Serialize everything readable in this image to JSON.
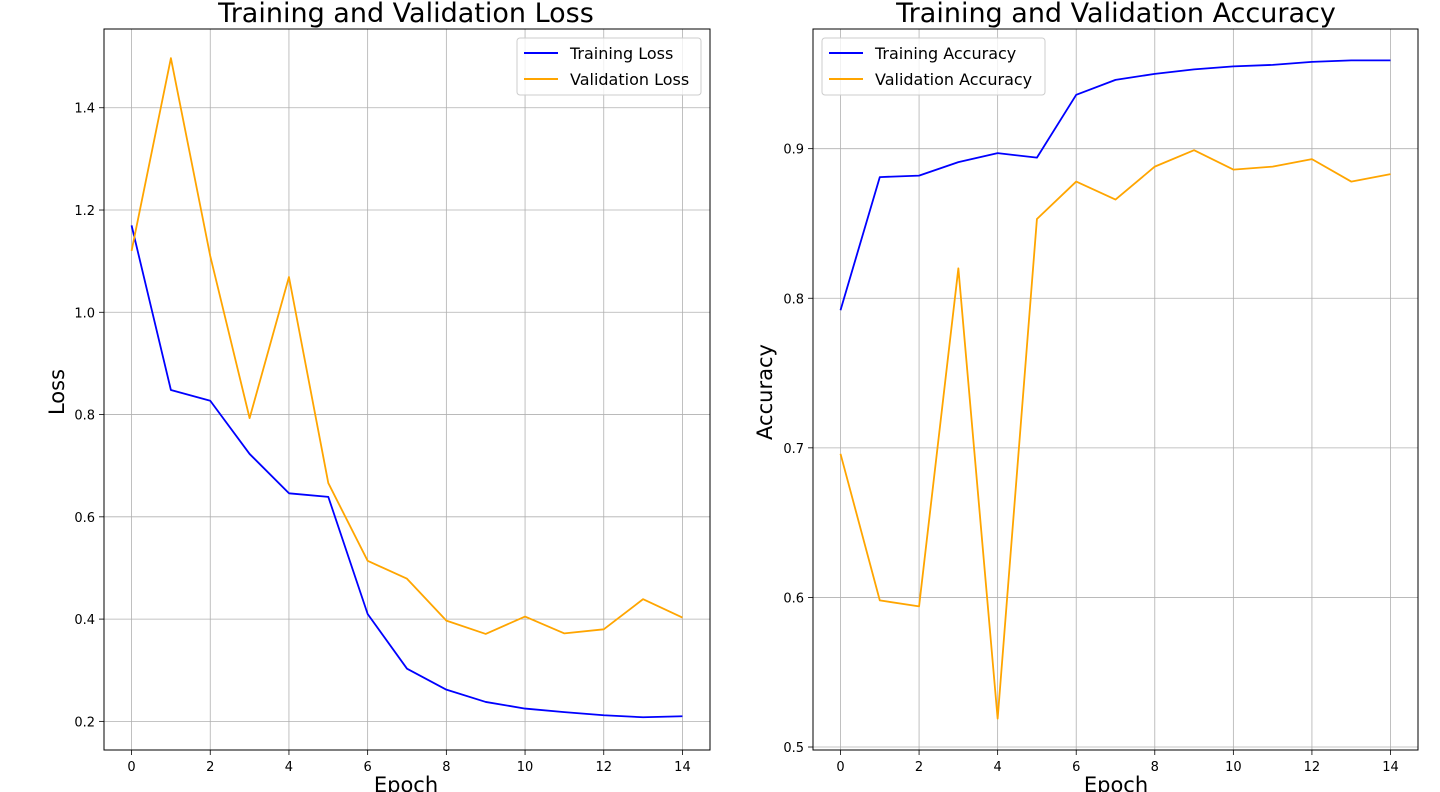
{
  "chart_data": [
    {
      "type": "line",
      "title": "Training and Validation Loss",
      "xlabel": "Epoch",
      "ylabel": "Loss",
      "x": [
        0,
        1,
        2,
        3,
        4,
        5,
        6,
        7,
        8,
        9,
        10,
        11,
        12,
        13,
        14
      ],
      "xlim": [
        -0.7,
        14.7
      ],
      "ylim": [
        0.144,
        1.554
      ],
      "xticks": [
        0,
        2,
        4,
        6,
        8,
        10,
        12,
        14
      ],
      "xtick_labels": [
        "0",
        "2",
        "4",
        "6",
        "8",
        "10",
        "12",
        "14"
      ],
      "yticks": [
        0.2,
        0.4,
        0.6,
        0.8,
        1.0,
        1.2,
        1.4
      ],
      "ytick_labels": [
        "0.2",
        "0.4",
        "0.6",
        "0.8",
        "1.0",
        "1.2",
        "1.4"
      ],
      "grid": true,
      "legend_position": "top-right",
      "series": [
        {
          "name": "Training Loss",
          "color": "#0000ff",
          "values": [
            1.17,
            0.848,
            0.827,
            0.723,
            0.646,
            0.639,
            0.41,
            0.303,
            0.262,
            0.238,
            0.225,
            0.218,
            0.212,
            0.208,
            0.21
          ]
        },
        {
          "name": "Validation Loss",
          "color": "#ffa500",
          "values": [
            1.12,
            1.497,
            1.11,
            0.793,
            1.069,
            0.666,
            0.514,
            0.479,
            0.397,
            0.371,
            0.405,
            0.372,
            0.38,
            0.439,
            0.403
          ]
        }
      ]
    },
    {
      "type": "line",
      "title": "Training and Validation Accuracy",
      "xlabel": "Epoch",
      "ylabel": "Accuracy",
      "x": [
        0,
        1,
        2,
        3,
        4,
        5,
        6,
        7,
        8,
        9,
        10,
        11,
        12,
        13,
        14
      ],
      "xlim": [
        -0.7,
        14.7
      ],
      "ylim": [
        0.498,
        0.98
      ],
      "xticks": [
        0,
        2,
        4,
        6,
        8,
        10,
        12,
        14
      ],
      "xtick_labels": [
        "0",
        "2",
        "4",
        "6",
        "8",
        "10",
        "12",
        "14"
      ],
      "yticks": [
        0.5,
        0.6,
        0.7,
        0.8,
        0.9
      ],
      "ytick_labels": [
        "0.5",
        "0.6",
        "0.7",
        "0.8",
        "0.9"
      ],
      "grid": true,
      "legend_position": "top-left",
      "series": [
        {
          "name": "Training Accuracy",
          "color": "#0000ff",
          "values": [
            0.792,
            0.881,
            0.882,
            0.891,
            0.897,
            0.894,
            0.936,
            0.946,
            0.95,
            0.953,
            0.955,
            0.956,
            0.958,
            0.959,
            0.959
          ]
        },
        {
          "name": "Validation Accuracy",
          "color": "#ffa500",
          "values": [
            0.696,
            0.598,
            0.594,
            0.82,
            0.519,
            0.853,
            0.878,
            0.866,
            0.888,
            0.899,
            0.886,
            0.888,
            0.893,
            0.878,
            0.883
          ]
        }
      ]
    }
  ]
}
